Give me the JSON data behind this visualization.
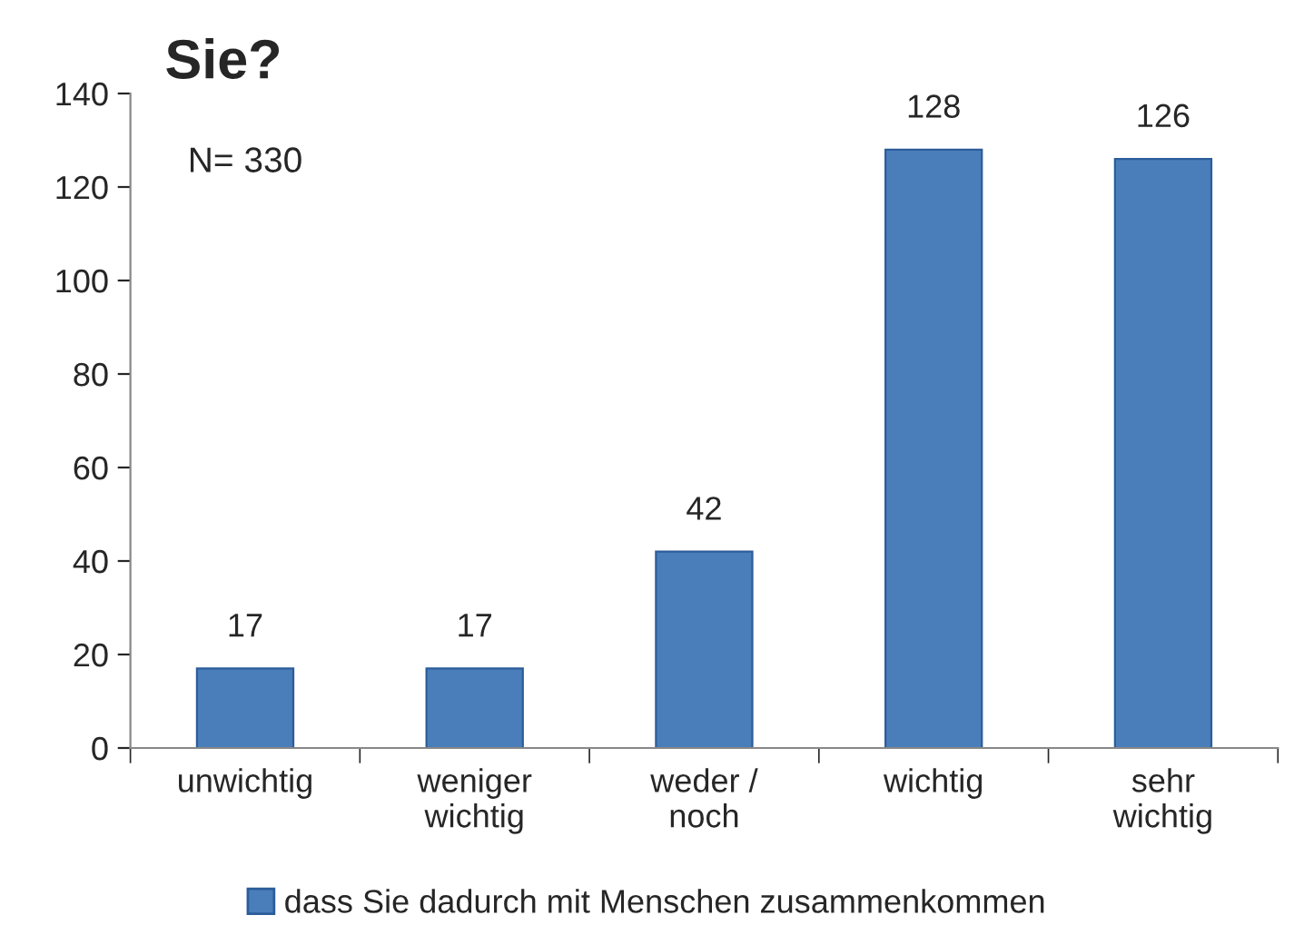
{
  "chart_data": {
    "type": "bar",
    "title": "Sie?",
    "categories": [
      "unwichtig",
      "weniger\nwichtig",
      "weder /\nnoch",
      "wichtig",
      "sehr\nwichtig"
    ],
    "series": [
      {
        "name": "dass Sie dadurch mit Menschen zusammenkommen",
        "color": "#4a7ebb",
        "values": [
          17,
          17,
          42,
          128,
          126
        ]
      }
    ],
    "ylim": [
      0,
      140
    ],
    "yticks": [
      0,
      20,
      40,
      60,
      80,
      100,
      120,
      140
    ],
    "data_labels": true,
    "legend": "bottom",
    "grid": false,
    "annotations": [
      "N= 330"
    ]
  }
}
